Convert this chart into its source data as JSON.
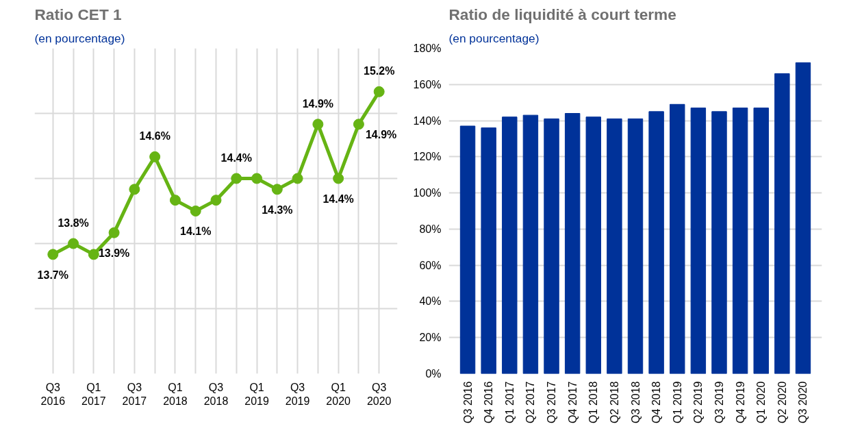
{
  "chart_data": [
    {
      "type": "line",
      "title": "Ratio CET 1",
      "subtitle": "(en pourcentage)",
      "categories": [
        "Q3 2016",
        null,
        "Q1 2017",
        null,
        "Q3 2017",
        null,
        "Q1 2018",
        null,
        "Q3 2018",
        null,
        "Q1 2019",
        null,
        "Q3 2019",
        null,
        "Q1 2020",
        null,
        "Q3 2020"
      ],
      "series": [
        {
          "color": "#66b414",
          "values": [
            13.7,
            13.8,
            13.7,
            13.9,
            14.3,
            14.6,
            14.2,
            14.1,
            14.2,
            14.4,
            14.4,
            14.3,
            14.4,
            14.9,
            14.4,
            14.9,
            15.2
          ],
          "value_labels": [
            "13.7%",
            "13.8%",
            null,
            "13.9%",
            null,
            "14.6%",
            null,
            "14.1%",
            null,
            "14.4%",
            null,
            "14.3%",
            null,
            "14.9%",
            "14.4%",
            "14.9%",
            "15.2%"
          ]
        }
      ],
      "ylim": [
        12.6,
        15.6
      ],
      "tick_labels": "x",
      "grid": true,
      "marker": "circle",
      "line_style": "solid"
    },
    {
      "type": "bar",
      "title": "Ratio de liquidité à court terme",
      "subtitle": "(en pourcentage)",
      "categories": [
        "Q3 2016",
        "Q4 2016",
        "Q1 2017",
        "Q2 2017",
        "Q3 2017",
        "Q4 2017",
        "Q1 2018",
        "Q2 2018",
        "Q3 2018",
        "Q4 2018",
        "Q1 2019",
        "Q2 2019",
        "Q3 2019",
        "Q4 2019",
        "Q1 2020",
        "Q2 2020",
        "Q3 2020"
      ],
      "series": [
        {
          "color": "#003299",
          "values": [
            137,
            136,
            142,
            143,
            141,
            144,
            142,
            141,
            141,
            145,
            149,
            147,
            145,
            147,
            147,
            166,
            172
          ]
        }
      ],
      "ylim": [
        0,
        180
      ],
      "yticks": [
        {
          "value": 0,
          "label": "0%"
        },
        {
          "value": 20,
          "label": "20%"
        },
        {
          "value": 40,
          "label": "40%"
        },
        {
          "value": 60,
          "label": "60%"
        },
        {
          "value": 80,
          "label": "80%"
        },
        {
          "value": 100,
          "label": "100%"
        },
        {
          "value": 120,
          "label": "120%"
        },
        {
          "value": 140,
          "label": "140%"
        },
        {
          "value": 160,
          "label": "160%"
        },
        {
          "value": 180,
          "label": "180%"
        }
      ],
      "grid": "y"
    }
  ]
}
